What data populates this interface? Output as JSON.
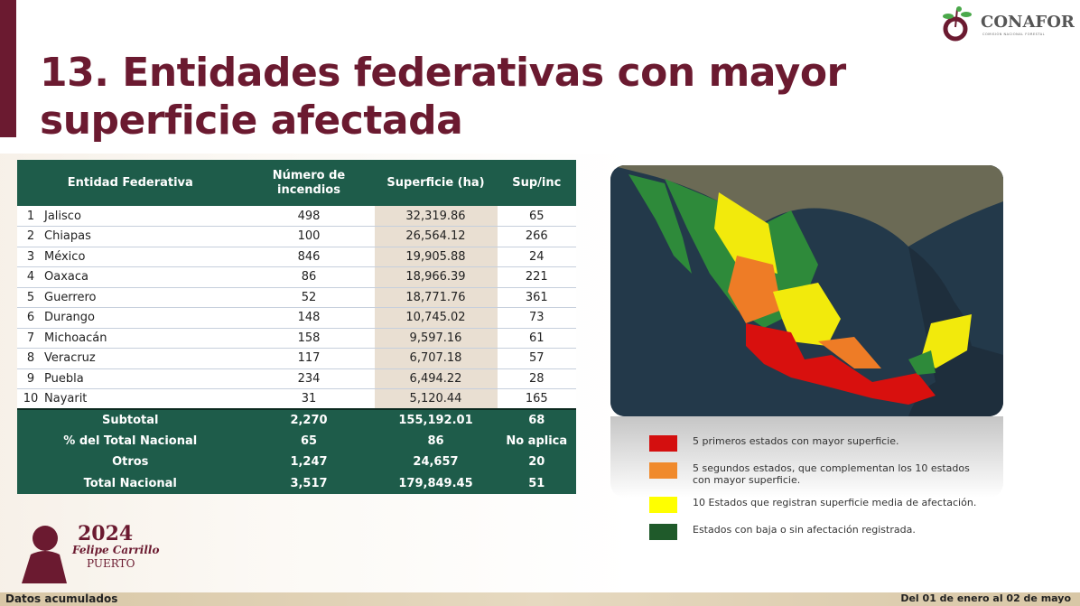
{
  "header": {
    "title": "13. Entidades federativas con mayor superficie afectada",
    "logo_text": "CONAFOR",
    "logo_subtitle": "COMISIÓN NACIONAL FORESTAL"
  },
  "table": {
    "columns": [
      "Entidad Federativa",
      "Número de incendios",
      "Superficie (ha)",
      "Sup/inc"
    ],
    "rows": [
      {
        "rank": "1",
        "state": "Jalisco",
        "fires": "498",
        "area": "32,319.86",
        "ratio": "65"
      },
      {
        "rank": "2",
        "state": "Chiapas",
        "fires": "100",
        "area": "26,564.12",
        "ratio": "266"
      },
      {
        "rank": "3",
        "state": "México",
        "fires": "846",
        "area": "19,905.88",
        "ratio": "24"
      },
      {
        "rank": "4",
        "state": "Oaxaca",
        "fires": "86",
        "area": "18,966.39",
        "ratio": "221"
      },
      {
        "rank": "5",
        "state": "Guerrero",
        "fires": "52",
        "area": "18,771.76",
        "ratio": "361"
      },
      {
        "rank": "6",
        "state": "Durango",
        "fires": "148",
        "area": "10,745.02",
        "ratio": "73"
      },
      {
        "rank": "7",
        "state": "Michoacán",
        "fires": "158",
        "area": "9,597.16",
        "ratio": "61"
      },
      {
        "rank": "8",
        "state": "Veracruz",
        "fires": "117",
        "area": "6,707.18",
        "ratio": "57"
      },
      {
        "rank": "9",
        "state": "Puebla",
        "fires": "234",
        "area": "6,494.22",
        "ratio": "28"
      },
      {
        "rank": "10",
        "state": "Nayarit",
        "fires": "31",
        "area": "5,120.44",
        "ratio": "165"
      }
    ],
    "totals": [
      {
        "label": "Subtotal",
        "fires": "2,270",
        "area": "155,192.01",
        "ratio": "68"
      },
      {
        "label": "% del Total Nacional",
        "fires": "65",
        "area": "86",
        "ratio": "No aplica"
      },
      {
        "label": "Otros",
        "fires": "1,247",
        "area": "24,657",
        "ratio": "20"
      },
      {
        "label": "Total Nacional",
        "fires": "3,517",
        "area": "179,849.45",
        "ratio": "51"
      }
    ]
  },
  "legend": [
    {
      "color": "#d40f0f",
      "label": "5 primeros estados con mayor superficie."
    },
    {
      "color": "#f08a2c",
      "label": "5 segundos estados, que complementan los 10 estados con mayor superficie."
    },
    {
      "color": "#ffff00",
      "label": "10 Estados que registran superficie media de afectación."
    },
    {
      "color": "#1f5a2a",
      "label": "Estados con baja o sin afectación registrada."
    }
  ],
  "emblem": {
    "year": "2024",
    "name1": "Felipe Carrillo",
    "name2": "PUERTO"
  },
  "footer": {
    "left": "Datos acumulados",
    "right": "Del 01 de enero al 02 de mayo"
  }
}
